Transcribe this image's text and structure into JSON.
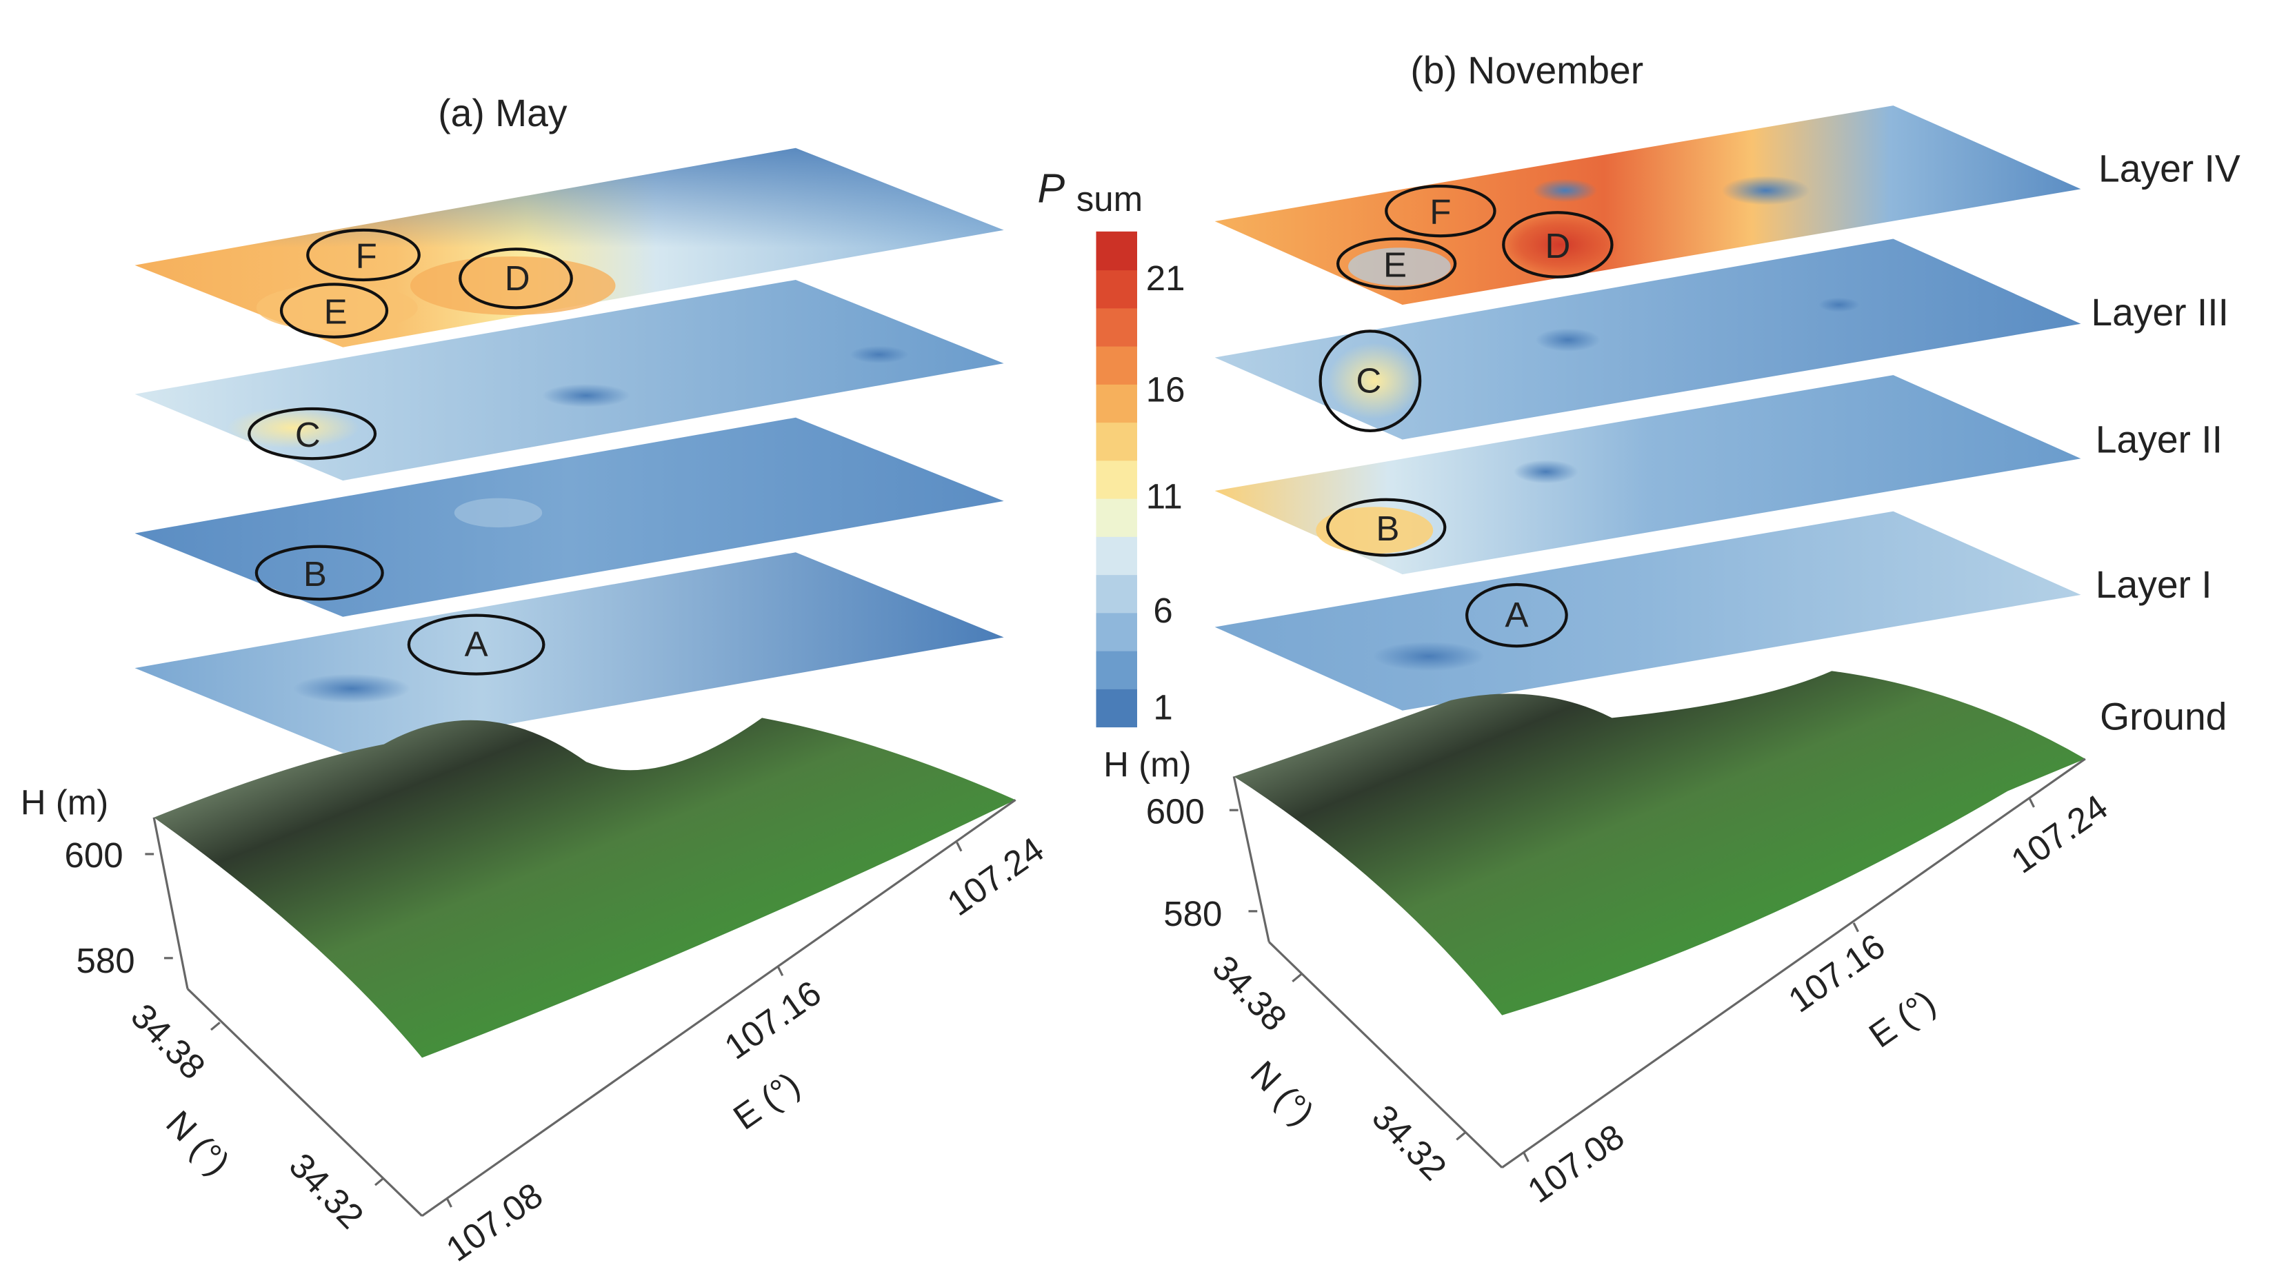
{
  "chart_data": {
    "type": "3d-layered-contour",
    "colorbar": {
      "title_main": "P",
      "title_sub": "sum",
      "ticks": [
        "1",
        "6",
        "11",
        "16",
        "21"
      ],
      "range": [
        0,
        23
      ],
      "colors_low_to_high": [
        "#4a7db8",
        "#6b9ccc",
        "#8fb7db",
        "#b3d0e6",
        "#d5e7f0",
        "#eef4d0",
        "#fbeaa0",
        "#f9d07a",
        "#f6b05c",
        "#f18c48",
        "#e86a3c",
        "#dc4a2e",
        "#cc3226"
      ]
    },
    "layer_names": [
      "Layer IV",
      "Layer III",
      "Layer II",
      "Layer I",
      "Ground"
    ],
    "panels": [
      {
        "title": "(a) May",
        "hotspots": [
          {
            "label": "F",
            "layer": "Layer IV"
          },
          {
            "label": "E",
            "layer": "Layer IV"
          },
          {
            "label": "D",
            "layer": "Layer IV"
          },
          {
            "label": "C",
            "layer": "Layer III"
          },
          {
            "label": "B",
            "layer": "Layer II"
          },
          {
            "label": "A",
            "layer": "Layer I"
          }
        ],
        "axes": {
          "h_label": "H (m)",
          "h_ticks": [
            "600",
            "580"
          ],
          "n_label": "N (°)",
          "n_ticks": [
            "34.38",
            "34.32"
          ],
          "e_label": "E (°)",
          "e_ticks": [
            "107.08",
            "107.16",
            "107.24"
          ]
        }
      },
      {
        "title": "(b) November",
        "hotspots": [
          {
            "label": "F",
            "layer": "Layer IV"
          },
          {
            "label": "E",
            "layer": "Layer IV"
          },
          {
            "label": "D",
            "layer": "Layer IV"
          },
          {
            "label": "C",
            "layer": "Layer III"
          },
          {
            "label": "B",
            "layer": "Layer II"
          },
          {
            "label": "A",
            "layer": "Layer I"
          }
        ],
        "axes": {
          "h_label": "H (m)",
          "h_ticks": [
            "600",
            "580"
          ],
          "n_label": "N (°)",
          "n_ticks": [
            "34.38",
            "34.32"
          ],
          "e_label": "E (°)",
          "e_ticks": [
            "107.08",
            "107.16",
            "107.24"
          ]
        }
      }
    ]
  }
}
